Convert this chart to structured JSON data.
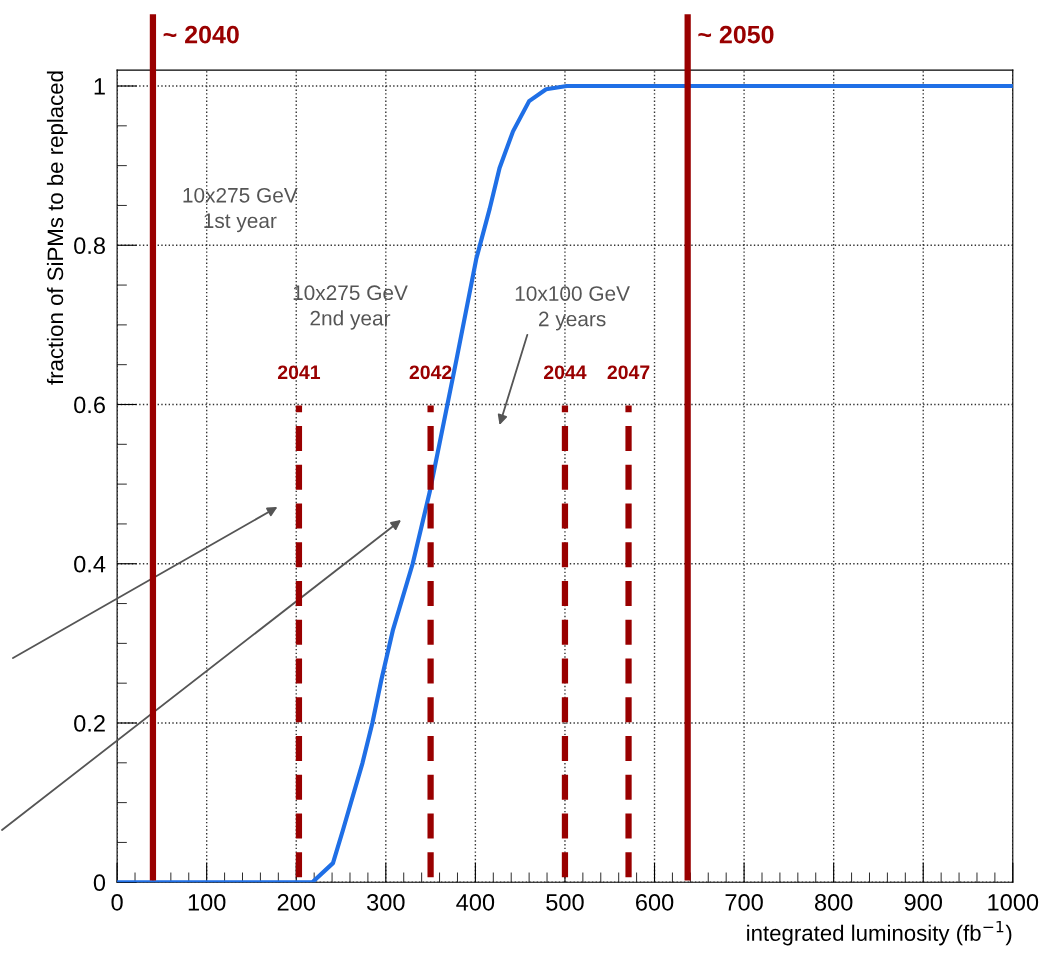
{
  "chart_data": {
    "type": "line",
    "xlabel": "integrated luminosity (fb$^{−1}$)",
    "ylabel": "fraction of SiPMs to be replaced",
    "series": [
      {
        "color": "#1f6fe6",
        "x": [
          0,
          218,
          241,
          252,
          274,
          285,
          295,
          308,
          330,
          349,
          379,
          401,
          416,
          427,
          442,
          460,
          479,
          502,
          1000
        ],
        "values": [
          0,
          0,
          0.024,
          0.065,
          0.15,
          0.2,
          0.254,
          0.317,
          0.4,
          0.49,
          0.657,
          0.783,
          0.846,
          0.897,
          0.943,
          0.981,
          0.996,
          1,
          1
        ]
      }
    ],
    "xlim": [
      0,
      1000
    ],
    "xticks": [
      0,
      100,
      200,
      300,
      400,
      500,
      600,
      700,
      800,
      900,
      1000
    ],
    "ylim": [
      0,
      1.02
    ],
    "yticks": [
      0,
      0.2,
      0.4,
      0.6,
      0.8,
      1
    ],
    "grid": true,
    "marker": "none",
    "line_style": "solid",
    "ref_lines": [
      {
        "axis": "x",
        "value": 40,
        "color": "#990000",
        "line_style": "solid"
      },
      {
        "axis": "x",
        "value": 203,
        "color": "#990000",
        "line_style": "dashed"
      },
      {
        "axis": "x",
        "value": 350,
        "color": "#990000",
        "line_style": "dashed"
      },
      {
        "axis": "x",
        "value": 500,
        "color": "#990000",
        "line_style": "dashed"
      },
      {
        "axis": "x",
        "value": 571,
        "color": "#990000",
        "line_style": "dashed"
      },
      {
        "axis": "x",
        "value": 637,
        "color": "#990000",
        "line_style": "solid"
      }
    ],
    "annotations": [
      "10x275 GeV\n1st year",
      "10x275 GeV\n2nd year",
      "10x100 GeV\n2 years",
      {
        "text": "~ 2040",
        "x": 40,
        "y": 1.02
      },
      {
        "text": "2041",
        "x": 203,
        "y": 0.6
      },
      {
        "text": "2042",
        "x": 350,
        "y": 0.6
      },
      {
        "text": "2044",
        "x": 500,
        "y": 0.6
      },
      {
        "text": "2047",
        "x": 571,
        "y": 0.6
      },
      {
        "text": "~ 2050",
        "x": 637,
        "y": 1.02
      }
    ]
  }
}
